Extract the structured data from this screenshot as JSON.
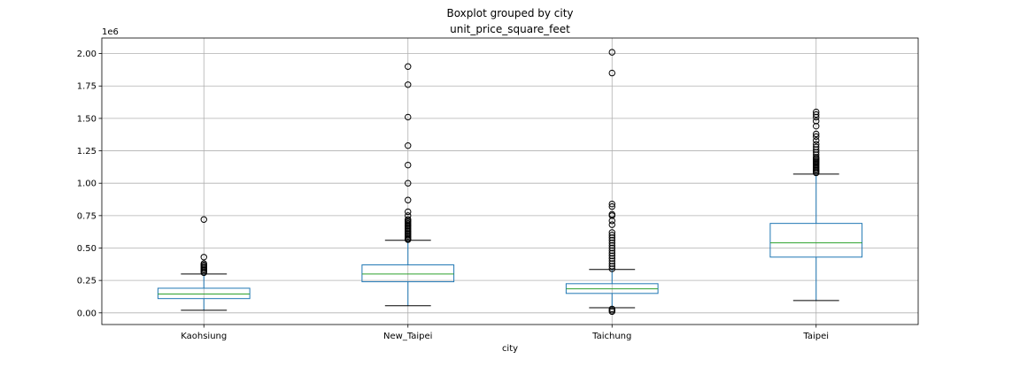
{
  "chart_data": {
    "type": "boxplot",
    "suptitle": "Boxplot grouped by city",
    "title": "unit_price_square_feet",
    "xlabel": "city",
    "ylabel": "",
    "y_offset_label": "1e6",
    "ylim": [
      -0.09,
      2.12
    ],
    "yticks": [
      0.0,
      0.25,
      0.5,
      0.75,
      1.0,
      1.25,
      1.5,
      1.75,
      2.0
    ],
    "ytick_labels": [
      "0.00",
      "0.25",
      "0.50",
      "0.75",
      "1.00",
      "1.25",
      "1.50",
      "1.75",
      "2.00"
    ],
    "grid": true,
    "categories": [
      "Kaohsiung",
      "New_Taipei",
      "Taichung",
      "Taipei"
    ],
    "boxes": [
      {
        "category": "Kaohsiung",
        "whisker_low": 0.02,
        "q1": 0.11,
        "median": 0.145,
        "q3": 0.19,
        "whisker_high": 0.3,
        "outliers": [
          0.31,
          0.32,
          0.33,
          0.34,
          0.35,
          0.36,
          0.37,
          0.38,
          0.43,
          0.72
        ]
      },
      {
        "category": "New_Taipei",
        "whisker_low": 0.055,
        "q1": 0.24,
        "median": 0.3,
        "q3": 0.37,
        "whisker_high": 0.56,
        "outliers": [
          0.565,
          0.57,
          0.58,
          0.59,
          0.6,
          0.61,
          0.62,
          0.63,
          0.64,
          0.65,
          0.66,
          0.67,
          0.68,
          0.69,
          0.7,
          0.71,
          0.72,
          0.75,
          0.78,
          0.87,
          1.0,
          1.14,
          1.29,
          1.51,
          1.76,
          1.9
        ]
      },
      {
        "category": "Taichung",
        "whisker_low": 0.04,
        "q1": 0.15,
        "median": 0.185,
        "q3": 0.225,
        "whisker_high": 0.335,
        "outliers": [
          0.01,
          0.02,
          0.03,
          0.34,
          0.36,
          0.38,
          0.4,
          0.42,
          0.44,
          0.46,
          0.48,
          0.5,
          0.52,
          0.54,
          0.56,
          0.58,
          0.6,
          0.62,
          0.68,
          0.71,
          0.75,
          0.76,
          0.82,
          0.84,
          1.85,
          2.01
        ]
      },
      {
        "category": "Taipei",
        "whisker_low": 0.095,
        "q1": 0.43,
        "median": 0.54,
        "q3": 0.69,
        "whisker_high": 1.07,
        "outliers": [
          1.08,
          1.09,
          1.1,
          1.11,
          1.12,
          1.13,
          1.14,
          1.15,
          1.16,
          1.17,
          1.18,
          1.19,
          1.2,
          1.22,
          1.24,
          1.26,
          1.28,
          1.3,
          1.33,
          1.36,
          1.38,
          1.44,
          1.48,
          1.51,
          1.53,
          1.55
        ]
      }
    ],
    "colors": {
      "box": "#1f77b4",
      "median": "#2ca02c",
      "whisker": "#000000",
      "grid": "#b0b0b0",
      "outlier_edge": "#000000"
    }
  }
}
